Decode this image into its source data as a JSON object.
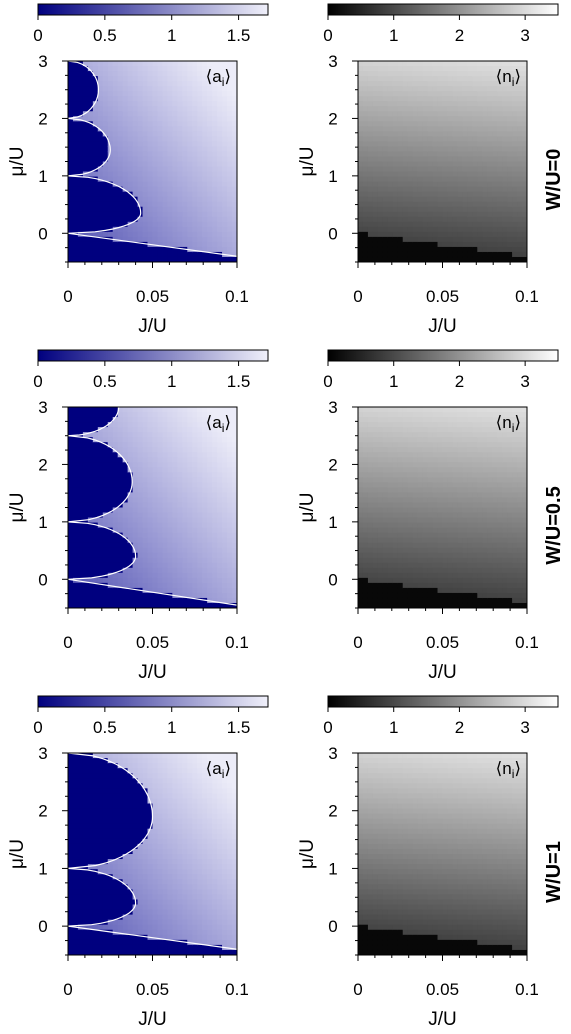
{
  "figure": {
    "columns": [
      {
        "colorbar": {
          "ticks": [
            "0",
            "0.5",
            "1",
            "1.5"
          ],
          "tick_values": [
            0,
            0.5,
            1,
            1.5
          ],
          "range": [
            0,
            1.72
          ],
          "colors": [
            "#00007f",
            "#f0f0fa"
          ]
        },
        "label_main": "⟨a",
        "label_sub": "i",
        "label_end": "⟩",
        "map": "condensate"
      },
      {
        "colorbar": {
          "ticks": [
            "0",
            "1",
            "2",
            "3"
          ],
          "tick_values": [
            0,
            1,
            2,
            3
          ],
          "range": [
            0,
            3.5
          ],
          "colors": [
            "#000000",
            "#ffffff"
          ]
        },
        "label_main": "⟨n",
        "label_sub": "i",
        "label_end": "⟩",
        "map": "density"
      }
    ],
    "rows": [
      {
        "label": "W/U=0"
      },
      {
        "label": "W/U=0.5"
      },
      {
        "label": "W/U=1"
      }
    ],
    "x_axis": {
      "label": "J/U",
      "ticks": [
        "0",
        "0.05",
        "0.1"
      ],
      "tick_values": [
        0,
        0.05,
        0.1
      ],
      "range": [
        0,
        0.1
      ]
    },
    "y_axis": {
      "label": "μ/U",
      "ticks": [
        "0",
        "1",
        "2",
        "3"
      ],
      "tick_values": [
        0,
        1,
        2,
        3
      ],
      "range": [
        -0.5,
        3
      ]
    }
  },
  "chart_data": [
    {
      "type": "heatmap",
      "row": "W/U=0",
      "quantity": "⟨a_i⟩",
      "xlabel": "J/U",
      "ylabel": "μ/U",
      "xlim": [
        0,
        0.1
      ],
      "ylim": [
        -0.5,
        3
      ],
      "colorbar_range": [
        0,
        1.72
      ],
      "mott_lobes": [
        {
          "mu_range": [
            0,
            1
          ],
          "tip": {
            "J": 0.043,
            "mu": 0.35
          }
        },
        {
          "mu_range": [
            1,
            2
          ],
          "tip": {
            "J": 0.025,
            "mu": 1.45
          }
        },
        {
          "mu_range": [
            2,
            3
          ],
          "tip": {
            "J": 0.018,
            "mu": 2.5
          }
        }
      ],
      "vacuum_boundary": [
        {
          "J": 0,
          "mu": 0
        },
        {
          "J": 0.1,
          "mu": -0.4
        }
      ]
    },
    {
      "type": "heatmap",
      "row": "W/U=0",
      "quantity": "⟨n_i⟩",
      "xlabel": "J/U",
      "ylabel": "μ/U",
      "xlim": [
        0,
        0.1
      ],
      "ylim": [
        -0.5,
        3
      ],
      "colorbar_range": [
        0,
        3.5
      ]
    },
    {
      "type": "heatmap",
      "row": "W/U=0.5",
      "quantity": "⟨a_i⟩",
      "xlabel": "J/U",
      "ylabel": "μ/U",
      "xlim": [
        0,
        0.1
      ],
      "ylim": [
        -0.5,
        3
      ],
      "colorbar_range": [
        0,
        1.72
      ],
      "mott_lobes": [
        {
          "mu_range": [
            0,
            1
          ],
          "tip": {
            "J": 0.04,
            "mu": 0.4
          }
        },
        {
          "mu_range": [
            1,
            2.5
          ],
          "tip": {
            "J": 0.038,
            "mu": 1.7
          }
        },
        {
          "mu_range": [
            2.5,
            3
          ],
          "tip": {
            "J": 0.03,
            "mu": 3
          }
        }
      ],
      "vacuum_boundary": [
        {
          "J": 0,
          "mu": 0
        },
        {
          "J": 0.1,
          "mu": -0.45
        }
      ]
    },
    {
      "type": "heatmap",
      "row": "W/U=0.5",
      "quantity": "⟨n_i⟩",
      "xlabel": "J/U",
      "ylabel": "μ/U",
      "xlim": [
        0,
        0.1
      ],
      "ylim": [
        -0.5,
        3
      ],
      "colorbar_range": [
        0,
        3.5
      ]
    },
    {
      "type": "heatmap",
      "row": "W/U=1",
      "quantity": "⟨a_i⟩",
      "xlabel": "J/U",
      "ylabel": "μ/U",
      "xlim": [
        0,
        0.1
      ],
      "ylim": [
        -0.5,
        3
      ],
      "colorbar_range": [
        0,
        1.72
      ],
      "mott_lobes": [
        {
          "mu_range": [
            0,
            1
          ],
          "tip": {
            "J": 0.04,
            "mu": 0.4
          }
        },
        {
          "mu_range": [
            1,
            3
          ],
          "tip": {
            "J": 0.05,
            "mu": 1.9
          }
        }
      ],
      "vacuum_boundary": [
        {
          "J": 0,
          "mu": 0
        },
        {
          "J": 0.1,
          "mu": -0.4
        }
      ]
    },
    {
      "type": "heatmap",
      "row": "W/U=1",
      "quantity": "⟨n_i⟩",
      "xlabel": "J/U",
      "ylabel": "μ/U",
      "xlim": [
        0,
        0.1
      ],
      "ylim": [
        -0.5,
        3
      ],
      "colorbar_range": [
        0,
        3.5
      ]
    }
  ]
}
